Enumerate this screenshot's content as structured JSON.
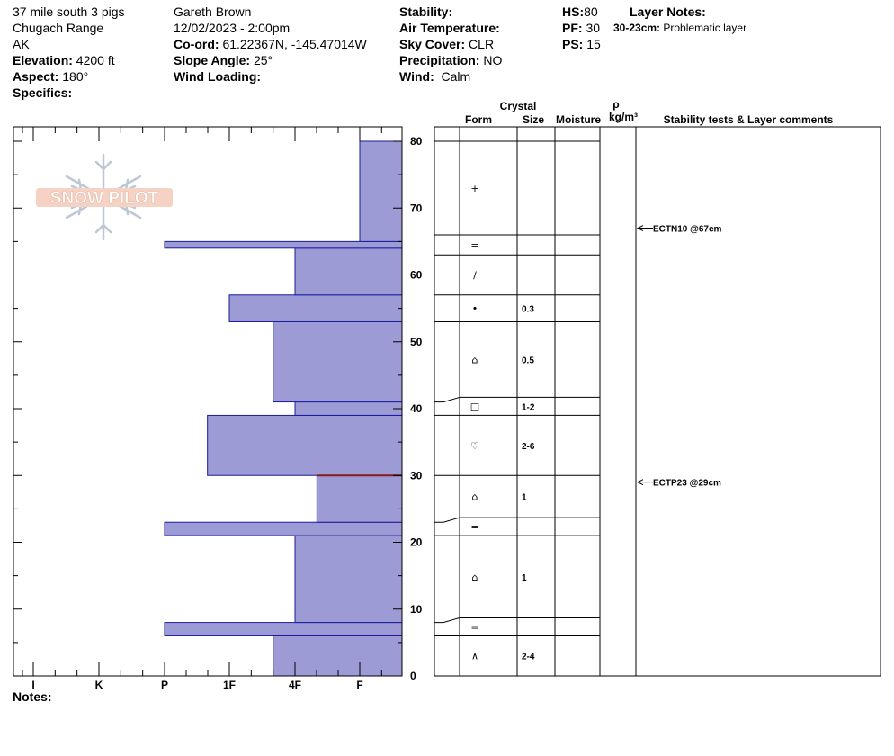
{
  "header": {
    "location": "37 mile south 3 pigs",
    "range": "Chugach Range",
    "state": "AK",
    "elevation_label": "Elevation:",
    "elevation": "4200 ft",
    "aspect_label": "Aspect:",
    "aspect": "180°",
    "specifics_label": "Specifics:",
    "observer": "Gareth Brown",
    "datetime": "12/02/2023 - 2:00pm",
    "coord_label": "Co-ord:",
    "coord": "61.22367N, -145.47014W",
    "slope_label": "Slope Angle:",
    "slope": "25°",
    "wind_loading_label": "Wind Loading:",
    "stability_label": "Stability:",
    "air_temp_label": "Air Temperature:",
    "sky_label": "Sky Cover:",
    "sky": "CLR",
    "precip_label": "Precipitation:",
    "precip": "NO",
    "wind_label": "Wind:",
    "wind": "Calm",
    "hs_label": "HS:",
    "hs": "80",
    "pf_label": "PF:",
    "pf": "30",
    "ps_label": "PS:",
    "ps": "15",
    "layer_notes_label": "Layer Notes:",
    "layer_note_range": "30-23cm:",
    "layer_note_text": "Problematic layer"
  },
  "logo_text": "SNOW PILOT",
  "notes_label": "Notes:",
  "table_headers": {
    "crystal": "Crystal",
    "form": "Form",
    "size": "Size",
    "moisture": "Moisture",
    "rho": "ρ",
    "density_unit": "kg/m³",
    "comments": "Stability tests & Layer comments"
  },
  "colors": {
    "hardness_fill": "#9c9bd6",
    "hardness_stroke": "#1a1a9c",
    "weak_layer": "#8b1a1a"
  },
  "chart_data": {
    "type": "bar",
    "orientation": "horizontal-step",
    "ylabel": "",
    "ylim": [
      0,
      80
    ],
    "y_ticks": [
      0,
      10,
      20,
      30,
      40,
      50,
      60,
      70,
      80
    ],
    "x_categories": [
      "I",
      "K",
      "P",
      "1F",
      "4F",
      "F"
    ],
    "hardness_layers": [
      {
        "bottom": 0,
        "top": 6,
        "hardness": "4F-"
      },
      {
        "bottom": 6,
        "top": 8,
        "hardness": "P"
      },
      {
        "bottom": 8,
        "top": 21,
        "hardness": "4F"
      },
      {
        "bottom": 21,
        "top": 23,
        "hardness": "P"
      },
      {
        "bottom": 23,
        "top": 30,
        "hardness": "4F+"
      },
      {
        "bottom": 30,
        "top": 39,
        "hardness": "1F-"
      },
      {
        "bottom": 39,
        "top": 41,
        "hardness": "4F"
      },
      {
        "bottom": 41,
        "top": 53,
        "hardness": "4F-"
      },
      {
        "bottom": 53,
        "top": 57,
        "hardness": "1F"
      },
      {
        "bottom": 57,
        "top": 64,
        "hardness": "4F"
      },
      {
        "bottom": 64,
        "top": 65,
        "hardness": "P"
      },
      {
        "bottom": 65,
        "top": 80,
        "hardness": "F"
      }
    ],
    "weak_layer_at": 30,
    "crystal_layers": [
      {
        "bottom": 0,
        "top": 6,
        "form": "∧",
        "size": "2-4"
      },
      {
        "bottom": 6,
        "top": 8,
        "form": "=",
        "size": ""
      },
      {
        "bottom": 8,
        "top": 21,
        "form": "⌂",
        "size": "1"
      },
      {
        "bottom": 21,
        "top": 23,
        "form": "=",
        "size": ""
      },
      {
        "bottom": 23,
        "top": 30,
        "form": "⌂",
        "size": "1"
      },
      {
        "bottom": 30,
        "top": 39,
        "form": "♡",
        "size": "2-6"
      },
      {
        "bottom": 39,
        "top": 41,
        "form": "□",
        "size": "1-2"
      },
      {
        "bottom": 41,
        "top": 53,
        "form": "⌂",
        "size": "0.5"
      },
      {
        "bottom": 53,
        "top": 57,
        "form": "•",
        "size": "0.3"
      },
      {
        "bottom": 57,
        "top": 63,
        "form": "/",
        "size": ""
      },
      {
        "bottom": 63,
        "top": 66,
        "form": "=",
        "size": ""
      },
      {
        "bottom": 66,
        "top": 80,
        "form": "+",
        "size": ""
      }
    ],
    "stability_tests": [
      {
        "label": "ECTN10 @67cm",
        "depth": 67
      },
      {
        "label": "ECTP23 @29cm",
        "depth": 29
      }
    ]
  }
}
